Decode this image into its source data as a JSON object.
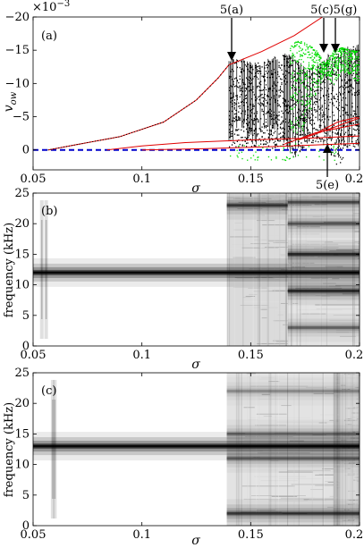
{
  "chart_data": [
    {
      "type": "scatter",
      "panel_label": "(a)",
      "xlabel": "σ",
      "ylabel": "v_ow",
      "ylabel_main": "v",
      "ylabel_sub": "ow",
      "exponent_base": "×10",
      "exponent_power": "−3",
      "xlim": [
        0.05,
        0.2
      ],
      "ylim": [
        3,
        -20
      ],
      "xticks": [
        "0.05",
        "0.1",
        "0.15",
        "0.2"
      ],
      "xtick_values": [
        0.05,
        0.1,
        0.15,
        0.2
      ],
      "yticks": [
        "−20",
        "−15",
        "−10",
        "−5",
        "0"
      ],
      "ytick_values": [
        -20,
        -15,
        -10,
        -5,
        0
      ],
      "annotations": [
        "5(a)",
        "5(c)",
        "5(g)",
        "5(e)"
      ],
      "annotation_x": [
        0.14,
        0.184,
        0.193,
        0.189
      ],
      "colors": {
        "branch": "#e00000",
        "baseline": "#0000cc",
        "black_points": "#000000",
        "green_points": "#00dd00"
      },
      "series": [
        {
          "style": "dashed-blue",
          "x": [
            0.05,
            0.2
          ],
          "y": [
            0.0,
            0.0
          ]
        },
        {
          "style": "red",
          "x": [
            0.057,
            0.07,
            0.09,
            0.11,
            0.125,
            0.135,
            0.14,
            0.155,
            0.17,
            0.183
          ],
          "y": [
            0.0,
            -0.8,
            -2.0,
            -4.2,
            -7.5,
            -10.8,
            -12.8,
            -14.8,
            -17.2,
            -20.0
          ]
        },
        {
          "style": "red",
          "x": [
            0.084,
            0.1,
            0.12,
            0.15,
            0.18,
            0.2
          ],
          "y": [
            0.0,
            -0.6,
            -1.1,
            -1.5,
            -1.8,
            -2.1
          ]
        },
        {
          "style": "red",
          "x": [
            0.1,
            0.13,
            0.16,
            0.2
          ],
          "y": [
            0.0,
            -0.2,
            -0.5,
            -1.0
          ]
        },
        {
          "style": "red",
          "x": [
            0.165,
            0.18,
            0.2
          ],
          "y": [
            -0.8,
            -2.6,
            -3.9
          ]
        },
        {
          "style": "red",
          "x": [
            0.172,
            0.185,
            0.2
          ],
          "y": [
            -1.5,
            -3.0,
            -4.8
          ]
        },
        {
          "style": "red",
          "x": [
            0.18,
            0.19,
            0.2
          ],
          "y": [
            -2.5,
            -4.2,
            -5.0
          ]
        }
      ],
      "scatter_envelope_black": {
        "x": [
          0.14,
          0.145,
          0.15,
          0.155,
          0.16,
          0.165,
          0.17,
          0.175,
          0.18,
          0.185,
          0.19,
          0.195,
          0.2
        ],
        "y_top": [
          -13.5,
          -13.8,
          -13.2,
          -13.0,
          -13.5,
          -14.5,
          -14.0,
          -12.0,
          -12.5,
          -14.0,
          -14.5,
          -15.5,
          -15.5
        ],
        "y_bottom": [
          -0.5,
          -0.5,
          -0.5,
          -0.5,
          -0.3,
          -0.5,
          1.5,
          -0.5,
          -1.0,
          -0.3,
          2.5,
          -0.5,
          -0.5
        ]
      },
      "scatter_envelope_green": {
        "x": [
          0.168,
          0.172,
          0.176,
          0.18,
          0.184,
          0.188,
          0.192,
          0.196,
          0.2
        ],
        "y_top": [
          -16.0,
          -16.5,
          -16.0,
          -15.0,
          -13.0,
          -15.0,
          -15.5,
          -15.0,
          -15.0
        ],
        "y_bottom": [
          -3.0,
          -1.0,
          -4.0,
          -9.0,
          -11.0,
          -10.0,
          -12.0,
          -11.0,
          -10.0
        ]
      }
    },
    {
      "type": "heatmap",
      "panel_label": "(b)",
      "xlabel": "σ",
      "ylabel": "frequency (kHz)",
      "xlim": [
        0.05,
        0.2
      ],
      "ylim": [
        0,
        25
      ],
      "xticks": [
        "0.05",
        "0.1",
        "0.15",
        "0.2"
      ],
      "xtick_values": [
        0.05,
        0.1,
        0.15,
        0.2
      ],
      "yticks": [
        "0",
        "5",
        "10",
        "15",
        "20",
        "25"
      ],
      "ytick_values": [
        0,
        5,
        10,
        15,
        20,
        25
      ],
      "dominant_frequency": 12,
      "bands": [
        {
          "x": [
            0.05,
            0.2
          ],
          "freq": 12,
          "strength": 1.0
        },
        {
          "x": [
            0.139,
            0.167
          ],
          "freq": 23,
          "strength": 0.6
        },
        {
          "x": [
            0.167,
            0.2
          ],
          "freq": 23.5,
          "strength": 0.5
        },
        {
          "x": [
            0.167,
            0.2
          ],
          "freq": 20,
          "strength": 0.45
        },
        {
          "x": [
            0.167,
            0.2
          ],
          "freq": 15,
          "strength": 0.7
        },
        {
          "x": [
            0.167,
            0.2
          ],
          "freq": 9,
          "strength": 0.7
        },
        {
          "x": [
            0.167,
            0.2
          ],
          "freq": 3,
          "strength": 0.4
        }
      ],
      "broadband_regions": [
        {
          "x": [
            0.139,
            0.167
          ],
          "level": 0.28
        },
        {
          "x": [
            0.167,
            0.2
          ],
          "level": 0.22
        }
      ],
      "vertical_streaks": [
        0.054,
        0.056
      ]
    },
    {
      "type": "heatmap",
      "panel_label": "(c)",
      "xlabel": "σ",
      "ylabel": "frequency (kHz)",
      "xlim": [
        0.05,
        0.2
      ],
      "ylim": [
        0,
        25
      ],
      "xticks": [
        "0.05",
        "0.1",
        "0.15",
        "0.2"
      ],
      "xtick_values": [
        0.05,
        0.1,
        0.15,
        0.2
      ],
      "yticks": [
        "0",
        "5",
        "10",
        "15",
        "20",
        "25"
      ],
      "ytick_values": [
        0,
        5,
        10,
        15,
        20,
        25
      ],
      "dominant_frequency": 13,
      "bands": [
        {
          "x": [
            0.05,
            0.2
          ],
          "freq": 13,
          "strength": 1.0
        },
        {
          "x": [
            0.139,
            0.2
          ],
          "freq": 2,
          "strength": 0.6
        },
        {
          "x": [
            0.139,
            0.2
          ],
          "freq": 11,
          "strength": 0.4
        },
        {
          "x": [
            0.139,
            0.2
          ],
          "freq": 15,
          "strength": 0.35
        },
        {
          "x": [
            0.139,
            0.2
          ],
          "freq": 22,
          "strength": 0.25
        }
      ],
      "broadband_regions": [
        {
          "x": [
            0.139,
            0.188
          ],
          "level": 0.22
        },
        {
          "x": [
            0.188,
            0.191
          ],
          "level": 0.75
        },
        {
          "x": [
            0.191,
            0.2
          ],
          "level": 0.3
        }
      ],
      "vertical_streaks": [
        0.059,
        0.06
      ]
    }
  ]
}
